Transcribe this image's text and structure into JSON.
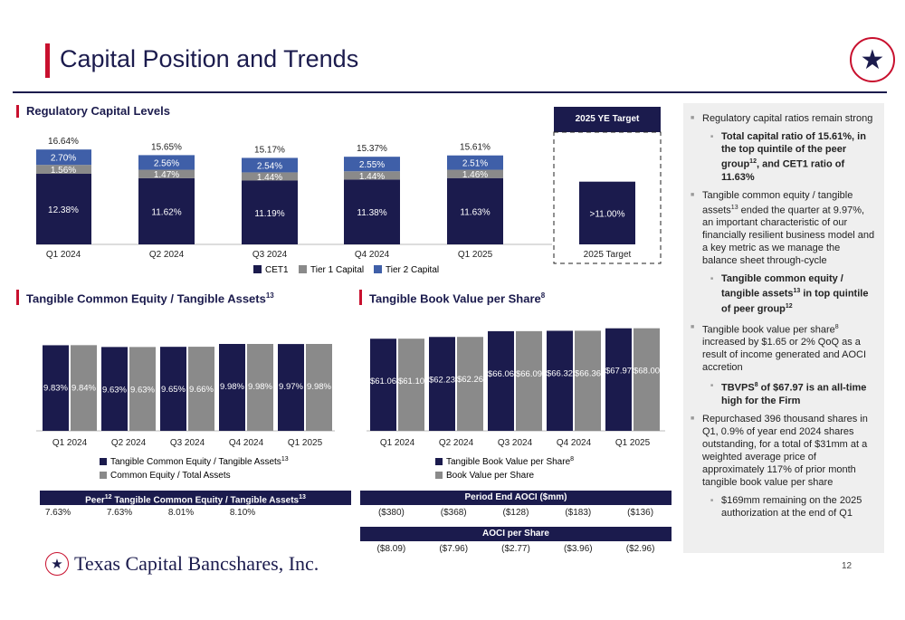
{
  "page": {
    "title": "Capital Position and Trends",
    "page_number": "12",
    "company": "Texas Capital Bancshares, Inc."
  },
  "colors": {
    "navy": "#1b1b4d",
    "gray": "#8a8a8a",
    "blue": "#3f5fa8",
    "red": "#c8102e"
  },
  "regcap": {
    "title": "Regulatory Capital Levels",
    "target_header": "2025 YE Target",
    "legend": [
      "CET1",
      "Tier 1 Capital",
      "Tier 2 Capital"
    ]
  },
  "tce": {
    "title": "Tangible Common Equity / Tangible Assets",
    "sup": "13",
    "legend": [
      "Tangible Common Equity / Tangible Assets",
      "Common Equity / Total Assets"
    ],
    "legend_sup": "13"
  },
  "tbv": {
    "title": "Tangible Book Value per Share",
    "sup": "8",
    "legend": [
      "Tangible Book Value per Share",
      "Book Value per Share"
    ],
    "legend_sup": "8"
  },
  "peer_table": {
    "header_pre": "Peer",
    "header_sup": "12",
    "header_mid": " Tangible Common Equity / Tangible Assets",
    "header_sup2": "13",
    "values": [
      "7.63%",
      "7.63%",
      "8.01%",
      "8.10%",
      ""
    ]
  },
  "aoci_table": {
    "header": "Period End AOCI ($mm)",
    "values": [
      "($380)",
      "($368)",
      "($128)",
      "($183)",
      "($136)"
    ]
  },
  "aoci_share_table": {
    "header": "AOCI per Share",
    "values": [
      "($8.09)",
      "($7.96)",
      "($2.77)",
      "($3.96)",
      "($2.96)"
    ]
  },
  "side": {
    "b1": "Regulatory capital ratios remain strong",
    "b1a": "Total capital ratio of 15.61%, in the top quintile of the peer group",
    "b1a_sup": "12",
    "b1a_tail": ", and CET1 ratio of 11.63%",
    "b2_pre": "Tangible common equity / tangible assets",
    "b2_sup": "13",
    "b2_tail": " ended the quarter at 9.97%, an important characteristic of our financially resilient business model and a key metric as we manage the balance sheet through-cycle",
    "b2a_pre": "Tangible common equity / tangible assets",
    "b2a_sup": "13",
    "b2a_tail": " in top quintile of peer group",
    "b2a_sup2": "12",
    "b3_pre": "Tangible book value per share",
    "b3_sup": "8",
    "b3_tail": " increased by $1.65 or 2% QoQ as a result of income generated and AOCI accretion",
    "b3a_pre": "TBVPS",
    "b3a_sup": "8",
    "b3a_tail": " of $67.97 is an all-time high for the Firm",
    "b4": "Repurchased 396 thousand shares in Q1, 0.9% of year end 2024 shares outstanding, for a total of $31mm at a weighted average price of approximately 117% of prior month tangible book value per share",
    "b4a": "$169mm remaining on the 2025 authorization at the end of Q1"
  },
  "chart_data": [
    {
      "type": "bar",
      "title": "Regulatory Capital Levels",
      "stacked": true,
      "categories": [
        "Q1 2024",
        "Q2 2024",
        "Q3 2024",
        "Q4 2024",
        "Q1 2025",
        "2025 Target"
      ],
      "series": [
        {
          "name": "CET1",
          "values": [
            12.38,
            11.62,
            11.19,
            11.38,
            11.63,
            null
          ],
          "labels": [
            "12.38%",
            "11.62%",
            "11.19%",
            "11.38%",
            "11.63%",
            ""
          ]
        },
        {
          "name": "Tier 1 Capital",
          "values": [
            1.56,
            1.47,
            1.44,
            1.44,
            1.46,
            null
          ],
          "labels": [
            "1.56%",
            "1.47%",
            "1.44%",
            "1.44%",
            "1.46%",
            ""
          ]
        },
        {
          "name": "Tier 2 Capital",
          "values": [
            2.7,
            2.56,
            2.54,
            2.55,
            2.51,
            null
          ],
          "labels": [
            "2.70%",
            "2.56%",
            "2.54%",
            "2.55%",
            "2.51%",
            ""
          ]
        }
      ],
      "totals": [
        "16.64%",
        "15.65%",
        "15.17%",
        "15.37%",
        "15.61%"
      ],
      "target": {
        "value": 11.0,
        "label": ">11.00%"
      }
    },
    {
      "type": "bar",
      "title": "Tangible Common Equity / Tangible Assets",
      "categories": [
        "Q1 2024",
        "Q2 2024",
        "Q3 2024",
        "Q4 2024",
        "Q1 2025"
      ],
      "series": [
        {
          "name": "Tangible Common Equity / Tangible Assets",
          "values": [
            9.83,
            9.63,
            9.65,
            9.98,
            9.97
          ],
          "labels": [
            "9.83%",
            "9.63%",
            "9.65%",
            "9.98%",
            "9.97%"
          ]
        },
        {
          "name": "Common Equity / Total Assets",
          "values": [
            9.84,
            9.63,
            9.66,
            9.98,
            9.98
          ],
          "labels": [
            "9.84%",
            "9.63%",
            "9.66%",
            "9.98%",
            "9.98%"
          ]
        }
      ]
    },
    {
      "type": "bar",
      "title": "Tangible Book Value per Share",
      "categories": [
        "Q1 2024",
        "Q2 2024",
        "Q3 2024",
        "Q4 2024",
        "Q1 2025"
      ],
      "series": [
        {
          "name": "Tangible Book Value per Share",
          "values": [
            61.06,
            62.23,
            66.06,
            66.32,
            67.97
          ],
          "labels": [
            "$61.06",
            "$62.23",
            "$66.06",
            "$66.32",
            "$67.97"
          ]
        },
        {
          "name": "Book Value per Share",
          "values": [
            61.1,
            62.26,
            66.09,
            66.36,
            68.0
          ],
          "labels": [
            "$61.10",
            "$62.26",
            "$66.09",
            "$66.36",
            "$68.00"
          ]
        }
      ]
    }
  ]
}
